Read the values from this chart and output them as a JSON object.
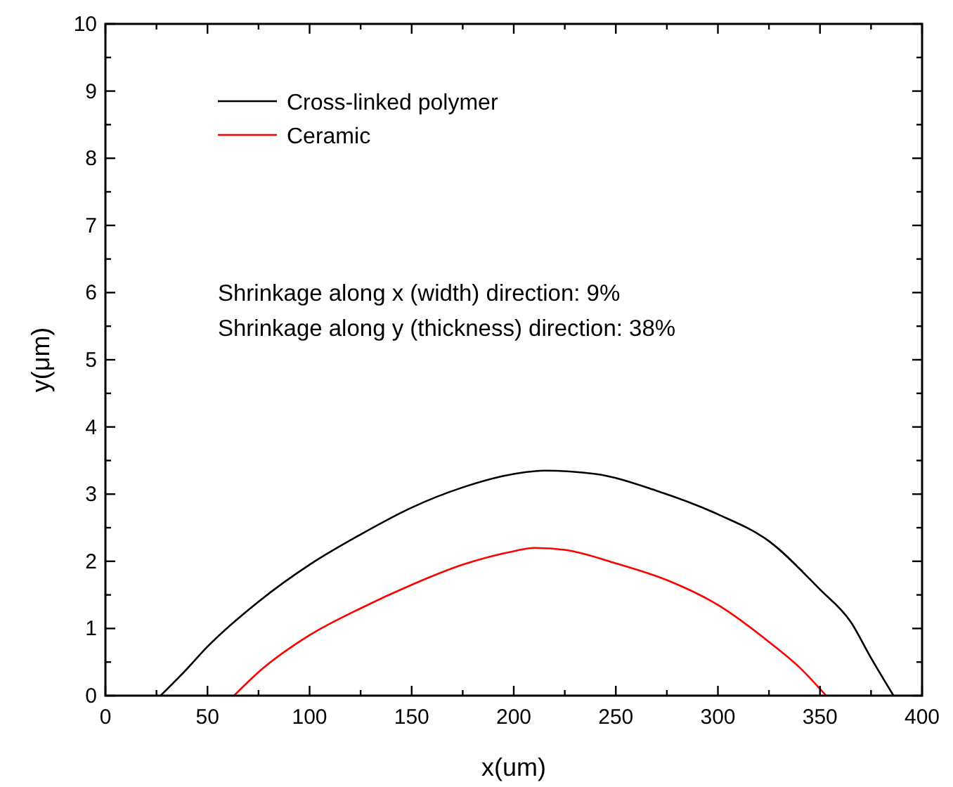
{
  "chart_data": {
    "type": "line",
    "xlabel": "x(um)",
    "ylabel": "y(μm)",
    "xlim": [
      0,
      400
    ],
    "ylim": [
      0,
      10
    ],
    "xticks": [
      0,
      {
        "value": 25,
        "label": null
      },
      50,
      {
        "value": 75,
        "label": null
      },
      100,
      {
        "value": 125,
        "label": null
      },
      150,
      {
        "value": 175,
        "label": null
      },
      200,
      {
        "value": 225,
        "label": null
      },
      250,
      {
        "value": 275,
        "label": null
      },
      300,
      {
        "value": 325,
        "label": null
      },
      350,
      {
        "value": 375,
        "label": null
      },
      400
    ],
    "yticks": [
      0,
      {
        "value": 0.5,
        "label": null
      },
      1,
      {
        "value": 1.5,
        "label": null
      },
      2,
      {
        "value": 2.5,
        "label": null
      },
      3,
      {
        "value": 3.5,
        "label": null
      },
      4,
      {
        "value": 4.5,
        "label": null
      },
      5,
      {
        "value": 5.5,
        "label": null
      },
      6,
      {
        "value": 6.5,
        "label": null
      },
      7,
      {
        "value": 7.5,
        "label": null
      },
      8,
      {
        "value": 8.5,
        "label": null
      },
      9,
      {
        "value": 9.5,
        "label": null
      },
      10
    ],
    "grid": false,
    "legend": "top left",
    "marker": "none",
    "line_style": "solid",
    "annotations": [
      "Shrinkage along x (width) direction: 9%",
      "Shrinkage along y (thickness) direction: 38%"
    ],
    "series": [
      {
        "name": "Cross-linked polymer",
        "color": "#000000",
        "x": [
          27,
          40,
          50,
          75,
          100,
          125,
          150,
          175,
          200,
          215,
          240,
          270,
          300,
          325,
          350,
          365,
          375,
          386
        ],
        "values": [
          0,
          0.4,
          0.73,
          1.4,
          1.95,
          2.4,
          2.8,
          3.1,
          3.3,
          3.35,
          3.3,
          3.05,
          2.7,
          2.3,
          1.58,
          1.1,
          0.56,
          0
        ]
      },
      {
        "name": "Ceramic",
        "color": "#ff0000",
        "x": [
          63,
          75,
          100,
          125,
          150,
          175,
          200,
          210,
          225,
          250,
          275,
          300,
          325,
          340,
          353
        ],
        "values": [
          0,
          0.35,
          0.9,
          1.3,
          1.65,
          1.95,
          2.15,
          2.2,
          2.17,
          1.97,
          1.72,
          1.35,
          0.8,
          0.42,
          0
        ]
      }
    ]
  }
}
